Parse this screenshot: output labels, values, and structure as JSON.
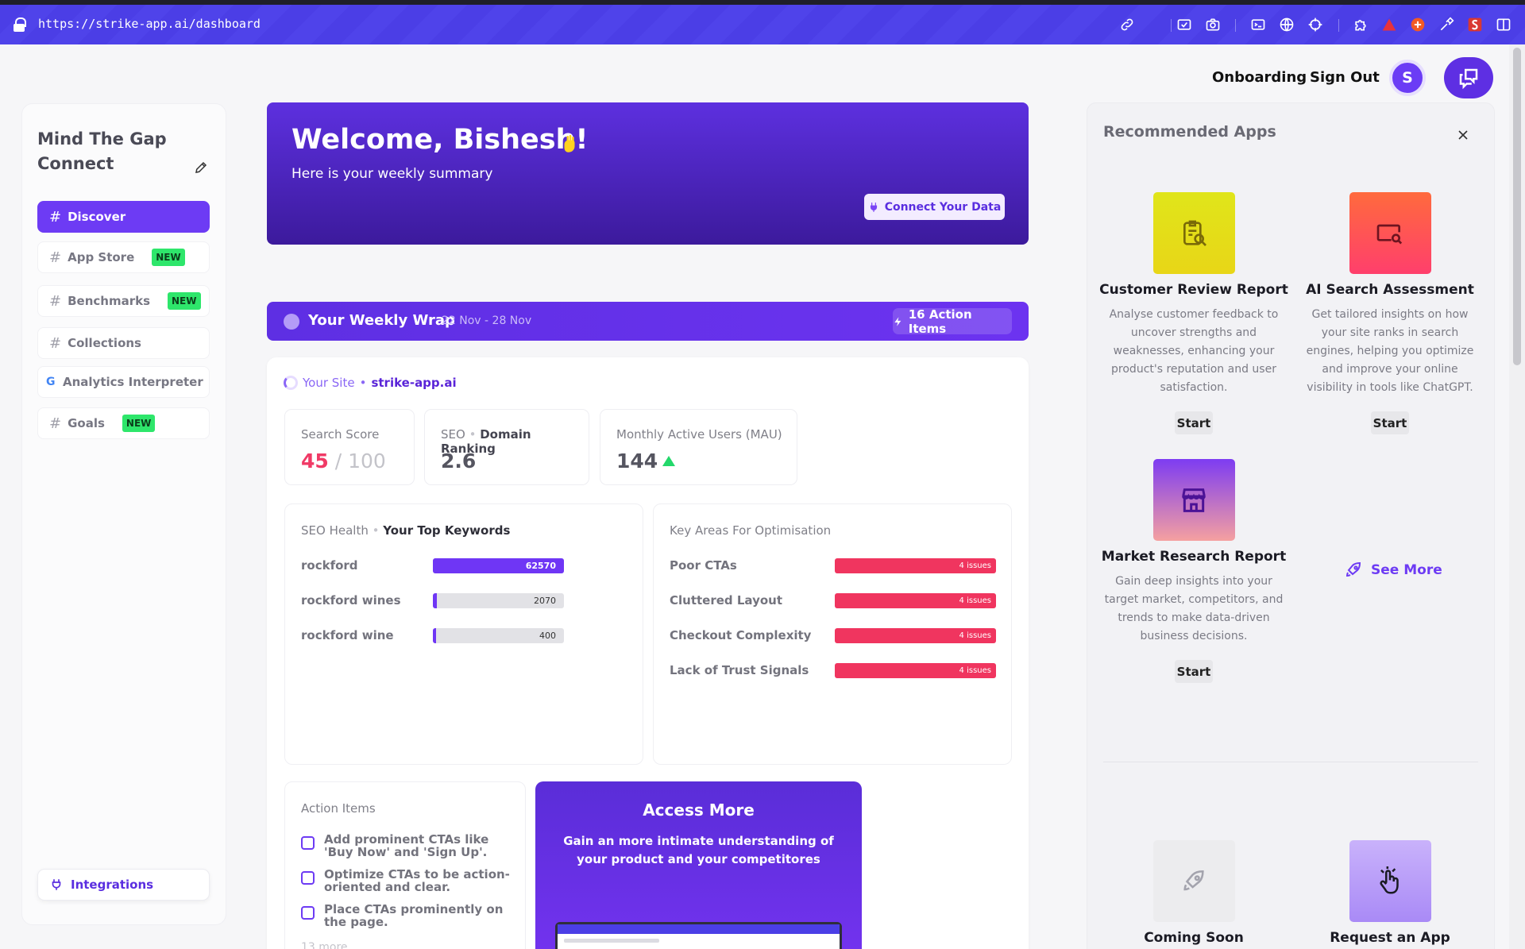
{
  "browser": {
    "url": "https://strike-app.ai/dashboard",
    "extension_icons": [
      "link-icon",
      "screen-capture-icon",
      "camera-icon",
      "terminal-icon",
      "globe-icon",
      "crosshair-icon",
      "puzzle-icon",
      "warning-triangle-icon",
      "plus-circle-icon",
      "eyedropper-icon",
      "seo-extension-icon",
      "sidebar-toggle-icon"
    ]
  },
  "header": {
    "onboarding_label": "Onboarding",
    "signout_label": "Sign Out",
    "avatar_initial": "S"
  },
  "sidebar": {
    "org_name": "Mind The Gap Connect",
    "hash": "#",
    "items": [
      {
        "label": "Discover",
        "badge": ""
      },
      {
        "label": "App Store",
        "badge": "NEW"
      },
      {
        "label": "Benchmarks",
        "badge": "NEW"
      },
      {
        "label": "Collections",
        "badge": ""
      },
      {
        "label": "Analytics Interpreter",
        "badge": ""
      },
      {
        "label": "Goals",
        "badge": "NEW"
      }
    ],
    "google_glyph": "G",
    "integrations_label": "Integrations"
  },
  "welcome": {
    "title": "Welcome, Bishesh!",
    "subtitle": "Here is your weekly summary",
    "connect_label": "Connect Your Data"
  },
  "weekly_wrap": {
    "title": "Your Weekly Wrap",
    "date_range": "22 Nov - 28 Nov",
    "action_items_label": "16 Action Items"
  },
  "site": {
    "label": "Your Site",
    "separator": "•",
    "domain": "strike-app.ai"
  },
  "metrics": {
    "search_score": {
      "label": "Search Score",
      "value": "45",
      "max": " / 100"
    },
    "domain_ranking": {
      "prefix": "SEO",
      "separator": "•",
      "label": "Domain Ranking",
      "value": "2.6"
    },
    "mau": {
      "label": "Monthly Active Users (MAU)",
      "value": "144",
      "trend": "up"
    }
  },
  "keywords": {
    "title_prefix": "SEO Health",
    "separator": "•",
    "title": "Your Top Keywords",
    "rows": [
      {
        "keyword": "rockford",
        "value": "62570",
        "fill": 1.0
      },
      {
        "keyword": "rockford wines",
        "value": "2070",
        "fill": 0.033
      },
      {
        "keyword": "rockford wine",
        "value": "400",
        "fill": 0.0064
      }
    ]
  },
  "optimisation": {
    "title": "Key Areas For Optimisation",
    "rows": [
      {
        "label": "Poor CTAs",
        "issues": "4 issues"
      },
      {
        "label": "Cluttered Layout",
        "issues": "4 issues"
      },
      {
        "label": "Checkout Complexity",
        "issues": "4 issues"
      },
      {
        "label": "Lack of Trust Signals",
        "issues": "4 issues"
      }
    ]
  },
  "action_items": {
    "title": "Action Items",
    "items": [
      "Add prominent CTAs like 'Buy Now' and 'Sign Up'.",
      "Optimize CTAs to be action-oriented and clear.",
      "Place CTAs prominently on the page."
    ],
    "more": "13 more"
  },
  "access_more": {
    "title": "Access More",
    "subtitle": "Gain an more intimate understanding of your product and your competitores"
  },
  "recommended": {
    "title": "Recommended Apps",
    "apps": [
      {
        "name": "Customer Review Report",
        "description": "Analyse customer feedback to uncover strengths and weaknesses, enhancing your product's reputation and user satisfaction.",
        "button": "Start",
        "icon": "clipboard-search-icon",
        "color": "#e6dc17"
      },
      {
        "name": "AI Search Assessment",
        "description": "Get tailored insights on how your site ranks in search engines, helping you optimize and improve your online visibility in tools like ChatGPT.",
        "button": "Start",
        "icon": "screen-search-icon",
        "color": "#fa4d5c"
      },
      {
        "name": "Market Research Report",
        "description": "Gain deep insights into your target market, competitors, and trends to make data-driven business decisions.",
        "button": "Start",
        "icon": "storefront-icon",
        "color": "#8a3cf0"
      }
    ],
    "see_more_label": "See More",
    "coming_soon_label": "Coming Soon",
    "request_label": "Request an App"
  }
}
